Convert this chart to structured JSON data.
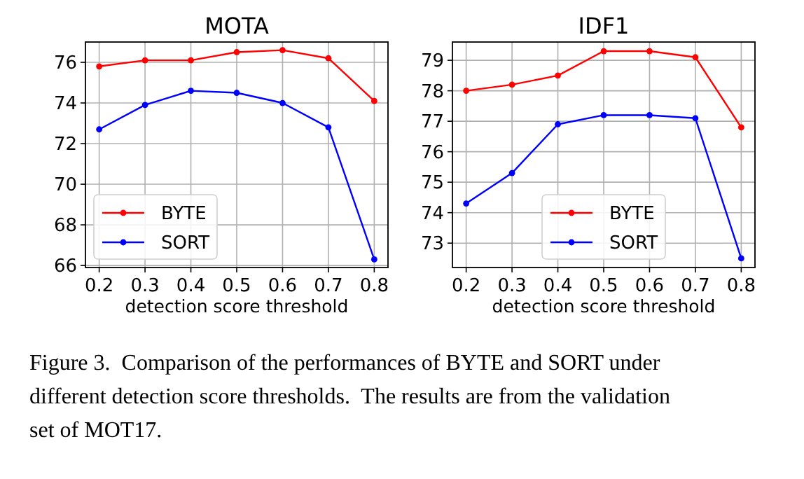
{
  "chart_data": [
    {
      "type": "line",
      "title": "MOTA",
      "xlabel": "detection score threshold",
      "x": [
        0.2,
        0.3,
        0.4,
        0.5,
        0.6,
        0.7,
        0.8
      ],
      "series": [
        {
          "name": "BYTE",
          "color": "#ff0000",
          "values": [
            75.8,
            76.1,
            76.1,
            76.5,
            76.6,
            76.2,
            74.1
          ]
        },
        {
          "name": "SORT",
          "color": "#0000ff",
          "values": [
            72.7,
            73.9,
            74.6,
            74.5,
            74.0,
            72.8,
            66.3
          ]
        }
      ],
      "xlim": [
        0.17,
        0.83
      ],
      "xticks": [
        0.2,
        0.3,
        0.4,
        0.5,
        0.6,
        0.7,
        0.8
      ],
      "ylim": [
        65.9,
        77.0
      ],
      "yticks": [
        66,
        68,
        70,
        72,
        74,
        76
      ],
      "grid": true,
      "legend": "bottom left",
      "marker": "circle",
      "line_style": "solid",
      "annotations": [
        "Figure 3.  Comparison of the performances of BYTE and SORT under different detection score thresholds.  The results are from the validation set of MOT17."
      ]
    },
    {
      "type": "line",
      "title": "IDF1",
      "xlabel": "detection score threshold",
      "x": [
        0.2,
        0.3,
        0.4,
        0.5,
        0.6,
        0.7,
        0.8
      ],
      "series": [
        {
          "name": "BYTE",
          "color": "#ff0000",
          "values": [
            78.0,
            78.2,
            78.5,
            79.3,
            79.3,
            79.1,
            76.8
          ]
        },
        {
          "name": "SORT",
          "color": "#0000ff",
          "values": [
            74.3,
            75.3,
            76.9,
            77.2,
            77.2,
            77.1,
            72.5
          ]
        }
      ],
      "xlim": [
        0.17,
        0.83
      ],
      "xticks": [
        0.2,
        0.3,
        0.4,
        0.5,
        0.6,
        0.7,
        0.8
      ],
      "ylim": [
        72.2,
        79.6
      ],
      "yticks": [
        73,
        74,
        75,
        76,
        77,
        78,
        79
      ],
      "grid": true,
      "legend": "bottom",
      "marker": "circle",
      "line_style": "solid"
    }
  ]
}
